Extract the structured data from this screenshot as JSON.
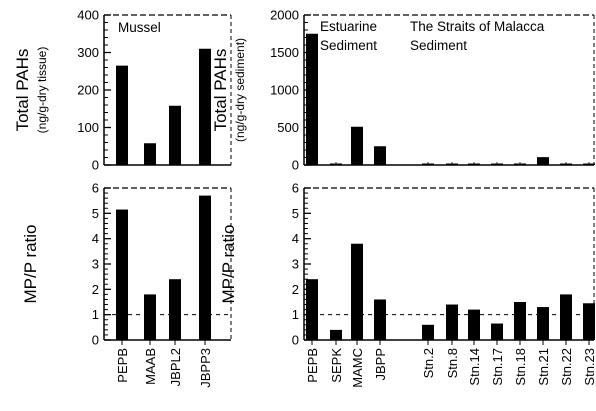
{
  "chart_data": [
    {
      "id": "mussel_pah",
      "type": "bar",
      "title": "Mussel",
      "ylabel": "Total PAHs",
      "ylabel_sub": "(ng/g-dry tissue)",
      "ylim": [
        0,
        400
      ],
      "yticks": [
        0,
        100,
        200,
        300,
        400
      ],
      "categories": [
        "PEPB",
        "MAAB",
        "JBPL2",
        "JBPP3"
      ],
      "values": [
        265,
        58,
        158,
        310
      ]
    },
    {
      "id": "mussel_mpp",
      "type": "bar",
      "ylabel": "MP/P ratio",
      "ylim": [
        0,
        6
      ],
      "yticks": [
        0,
        1,
        2,
        3,
        4,
        5,
        6
      ],
      "reference_line": 1,
      "categories": [
        "PEPB",
        "MAAB",
        "JBPL2",
        "JBPP3"
      ],
      "values": [
        5.15,
        1.8,
        2.4,
        5.7
      ]
    },
    {
      "id": "sediment_pah",
      "type": "bar",
      "ylabel": "Total PAHs",
      "ylabel_sub": "(ng/g-dry sediment)",
      "annotations": [
        "Estuarine\nSediment",
        "The Straits of Malacca\nSediment"
      ],
      "ylim": [
        0,
        2000
      ],
      "yticks": [
        0,
        500,
        1000,
        1500,
        2000
      ],
      "categories": [
        "PEPB",
        "SEPK",
        "MAMC",
        "JBPP",
        "Stn.2",
        "Stn.8",
        "Stn.14",
        "Stn.17",
        "Stn.18",
        "Stn.21",
        "Stn.22",
        "Stn.23"
      ],
      "values": [
        1750,
        8,
        510,
        250,
        6,
        6,
        6,
        5,
        6,
        105,
        6,
        6
      ]
    },
    {
      "id": "sediment_mpp",
      "type": "bar",
      "ylabel": "MP/P ratio",
      "ylim": [
        0,
        6
      ],
      "yticks": [
        0,
        1,
        2,
        3,
        4,
        5,
        6
      ],
      "reference_line": 1,
      "categories": [
        "PEPB",
        "SEPK",
        "MAMC",
        "JBPP",
        "Stn.2",
        "Stn.8",
        "Stn.14",
        "Stn.17",
        "Stn.18",
        "Stn.21",
        "Stn.22",
        "Stn.23"
      ],
      "values": [
        2.4,
        0.4,
        3.8,
        1.6,
        0.6,
        1.4,
        1.2,
        0.65,
        1.5,
        1.3,
        1.8,
        1.45
      ]
    }
  ],
  "colors": {
    "bar": "#000000",
    "axis": "#000000"
  }
}
